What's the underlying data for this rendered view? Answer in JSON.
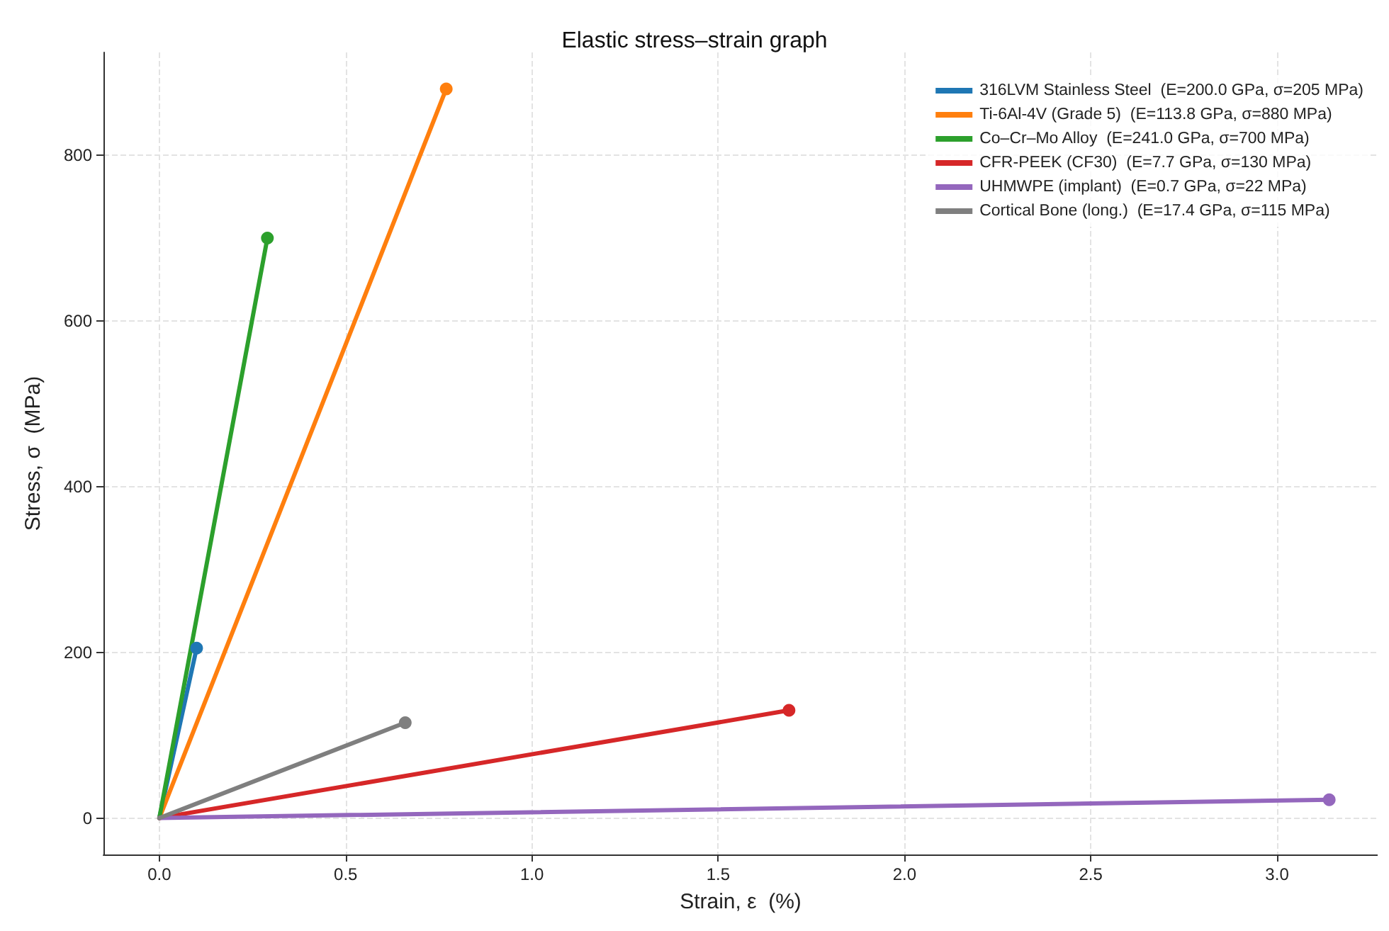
{
  "chart_data": {
    "type": "line",
    "title": "Elastic stress–strain graph",
    "xlabel": "Strain, ε  (%)",
    "ylabel": "Stress, σ  (MPa)",
    "series": [
      {
        "name": "316LVM Stainless Steel  (E=200.0 GPa, σ=205 MPa)",
        "color": "#1f77b4",
        "x": [
          0,
          0.1
        ],
        "values": [
          0,
          205
        ]
      },
      {
        "name": "Ti-6Al-4V (Grade 5)  (E=113.8 GPa, σ=880 MPa)",
        "color": "#ff7f0e",
        "x": [
          0,
          0.77
        ],
        "values": [
          0,
          880
        ]
      },
      {
        "name": "Co–Cr–Mo Alloy  (E=241.0 GPa, σ=700 MPa)",
        "color": "#2ca02c",
        "x": [
          0,
          0.29
        ],
        "values": [
          0,
          700
        ]
      },
      {
        "name": "CFR-PEEK (CF30)  (E=7.7 GPa, σ=130 MPa)",
        "color": "#d62728",
        "x": [
          0,
          1.69
        ],
        "values": [
          0,
          130
        ]
      },
      {
        "name": "UHMWPE (implant)  (E=0.7 GPa, σ=22 MPa)",
        "color": "#9467bd",
        "x": [
          0,
          3.14
        ],
        "values": [
          0,
          22
        ]
      },
      {
        "name": "Cortical Bone (long.)  (E=17.4 GPa, σ=115 MPa)",
        "color": "#7f7f7f",
        "x": [
          0,
          0.66
        ],
        "values": [
          0,
          115
        ]
      }
    ],
    "xlim": [
      -0.15,
      3.27
    ],
    "xticks": [
      {
        "value": 0,
        "label": "0.0"
      },
      {
        "value": 0.5,
        "label": "0.5"
      },
      {
        "value": 1,
        "label": "1.0"
      },
      {
        "value": 1.5,
        "label": "1.5"
      },
      {
        "value": 2,
        "label": "2.0"
      },
      {
        "value": 2.5,
        "label": "2.5"
      },
      {
        "value": 3,
        "label": "3.0"
      }
    ],
    "ylim": [
      -44,
      924
    ],
    "yticks": [
      0,
      200,
      400,
      600,
      800
    ],
    "grid": true,
    "legend": "top right",
    "marker": "circle",
    "line_style": "solid"
  }
}
